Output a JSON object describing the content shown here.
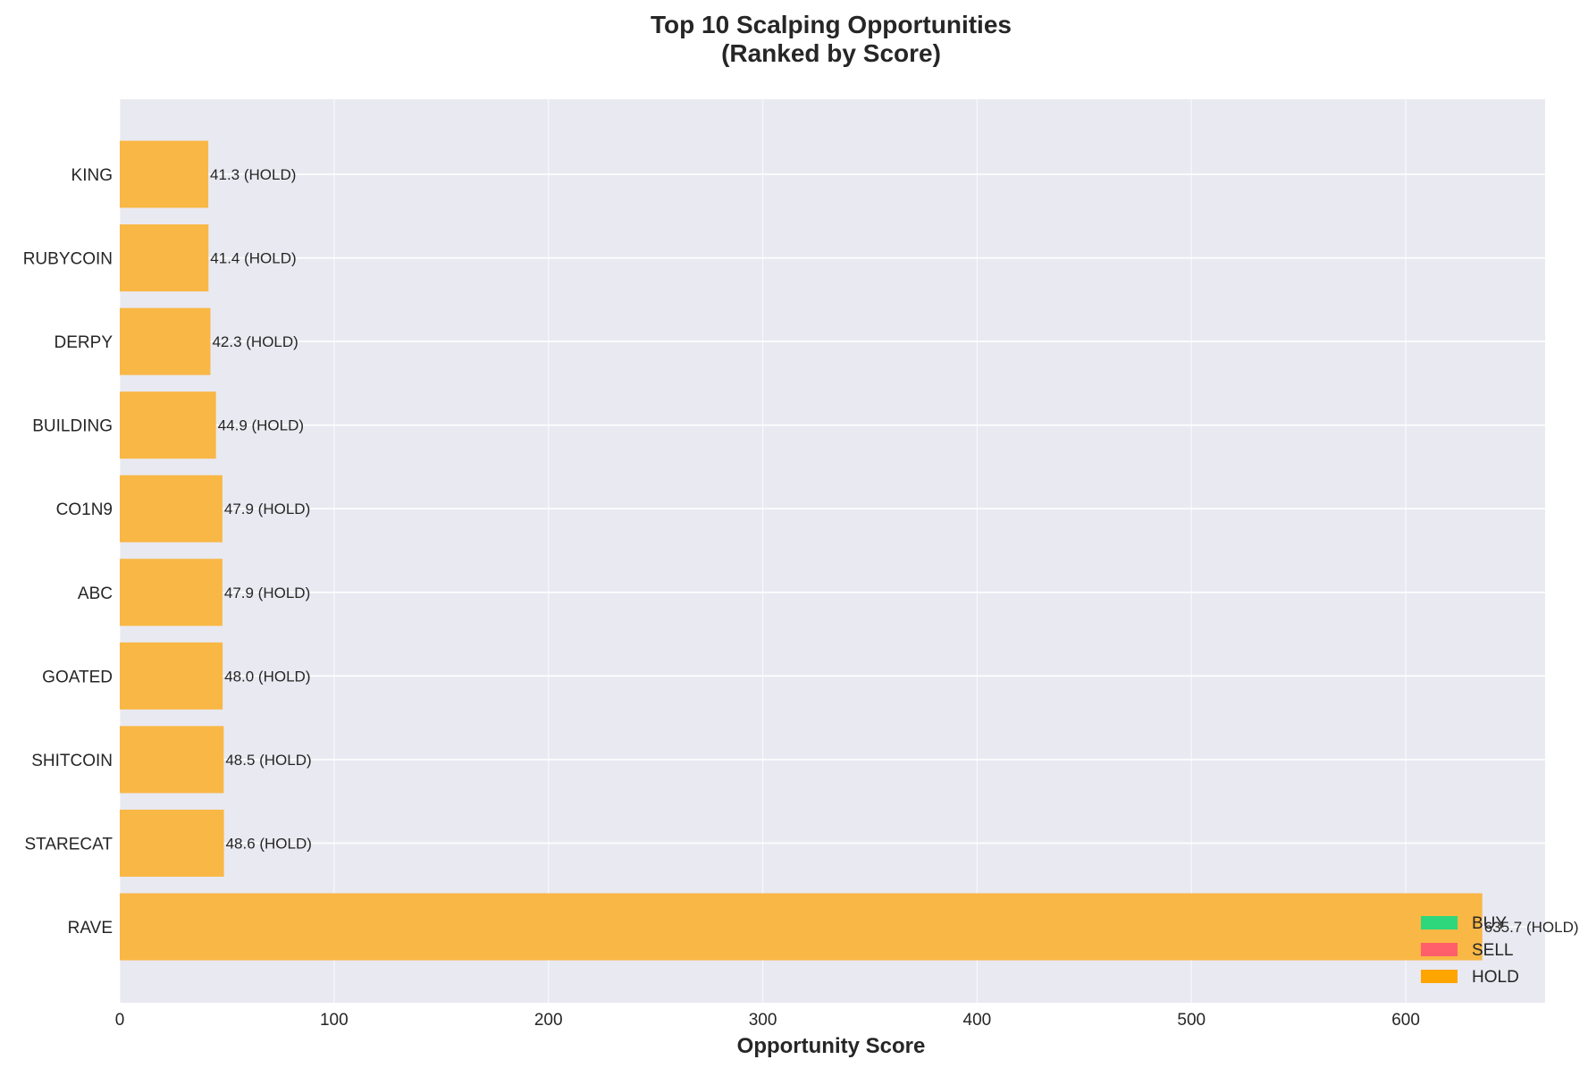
{
  "chart_data": {
    "type": "bar",
    "orientation": "horizontal",
    "title": "Top 10 Scalping Opportunities\n(Ranked by Score)",
    "xlabel": "Opportunity Score",
    "ylabel": "",
    "xlim": [
      0,
      665
    ],
    "xticks": [
      0,
      100,
      200,
      300,
      400,
      500,
      600
    ],
    "grid": true,
    "legend_position": "lower right",
    "categories": [
      "RAVE",
      "STARECAT",
      "SHITCOIN",
      "GOATED",
      "ABC",
      "CO1N9",
      "BUILDING",
      "DERPY",
      "RUBYCOIN",
      "KING"
    ],
    "values": [
      635.7,
      48.6,
      48.5,
      48.0,
      47.9,
      47.9,
      44.9,
      42.3,
      41.4,
      41.3
    ],
    "signals": [
      "HOLD",
      "HOLD",
      "HOLD",
      "HOLD",
      "HOLD",
      "HOLD",
      "HOLD",
      "HOLD",
      "HOLD",
      "HOLD"
    ],
    "data_labels": [
      "635.7 (HOLD)",
      "48.6 (HOLD)",
      "48.5 (HOLD)",
      "48.0 (HOLD)",
      "47.9 (HOLD)",
      "47.9 (HOLD)",
      "44.9 (HOLD)",
      "42.3 (HOLD)",
      "41.4 (HOLD)",
      "41.3 (HOLD)"
    ],
    "legend": [
      {
        "label": "BUY",
        "color": "#2ed77b"
      },
      {
        "label": "SELL",
        "color": "#ff5f6b"
      },
      {
        "label": "HOLD",
        "color": "#ffa500"
      }
    ],
    "bar_color": "#f9b745",
    "plot_background": "#e9e9f1"
  }
}
